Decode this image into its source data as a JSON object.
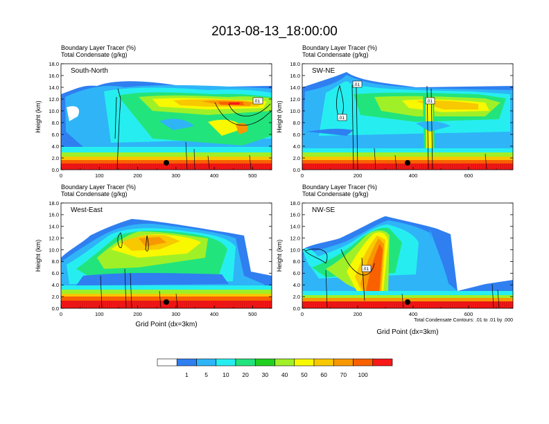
{
  "figure_title": "2013-08-13_18:00:00",
  "shared": {
    "subtitle_line1": "Boundary Layer Tracer   (%)",
    "subtitle_line2": "Total Condensate   (g/kg)",
    "ylabel": "Height (km)",
    "xlabel": "Grid Point (dx=3km)",
    "contour_note": "Total Condensate Contours: .01 to .01 by .000",
    "contour_label": ".01"
  },
  "colorbar": {
    "levels": [
      "1",
      "5",
      "10",
      "20",
      "30",
      "40",
      "50",
      "60",
      "70",
      "100"
    ],
    "colors": [
      "#ffffff",
      "#2f7ff0",
      "#2fb4f8",
      "#26eef0",
      "#22e47c",
      "#20d020",
      "#a0f028",
      "#f8f800",
      "#f8c800",
      "#f89800",
      "#f86000",
      "#f81818"
    ]
  },
  "chart_data": [
    {
      "type": "heatmap",
      "panel_label": "South-North",
      "xlim": [
        0,
        550
      ],
      "xticks": [
        "0",
        "100",
        "200",
        "300",
        "400",
        "500"
      ],
      "ylim": [
        0,
        18
      ],
      "yticks": [
        "0.0",
        "2.0",
        "4.0",
        "6.0",
        "8.0",
        "10.0",
        "12.0",
        "14.0",
        "16.0",
        "18.0"
      ],
      "fields": {
        "bl_tracer_percent": [
          {
            "x": [
              0,
              550
            ],
            "y": [
              0,
              1
            ],
            "value": "100"
          },
          {
            "x": [
              0,
              550
            ],
            "y": [
              1,
              2
            ],
            "value": "60-70"
          },
          {
            "x": [
              0,
              550
            ],
            "y": [
              2,
              3
            ],
            "value": "30-50"
          },
          {
            "x": [
              150,
              420
            ],
            "y": [
              10.5,
              13
            ],
            "value": "40-60"
          },
          {
            "x": [
              380,
              470
            ],
            "y": [
              11,
              12.5
            ],
            "value": "70-100"
          }
        ],
        "total_condensate_contour_gkg": 0.01
      }
    },
    {
      "type": "heatmap",
      "panel_label": "SW-NE",
      "xlim": [
        0,
        760
      ],
      "xticks": [
        "0",
        "200",
        "400",
        "600"
      ],
      "ylim": [
        0,
        18
      ],
      "yticks": [
        "0.0",
        "2.0",
        "4.0",
        "6.0",
        "8.0",
        "10.0",
        "12.0",
        "14.0",
        "16.0",
        "18.0"
      ],
      "fields": {
        "bl_tracer_percent": [
          {
            "x": [
              0,
              760
            ],
            "y": [
              0,
              1
            ],
            "value": "100"
          },
          {
            "x": [
              0,
              760
            ],
            "y": [
              1,
              2.5
            ],
            "value": "50-70"
          },
          {
            "x": [
              200,
              740
            ],
            "y": [
              10,
              13
            ],
            "value": "30-50"
          },
          {
            "x": [
              440,
              500
            ],
            "y": [
              1,
              12
            ],
            "value": "40-60"
          }
        ],
        "total_condensate_contour_gkg": 0.01
      }
    },
    {
      "type": "heatmap",
      "panel_label": "West-East",
      "xlim": [
        0,
        550
      ],
      "xticks": [
        "0",
        "100",
        "200",
        "300",
        "400",
        "500"
      ],
      "ylim": [
        0,
        18
      ],
      "yticks": [
        "0.0",
        "2.0",
        "4.0",
        "6.0",
        "8.0",
        "10.0",
        "12.0",
        "14.0",
        "16.0",
        "18.0"
      ],
      "fields": {
        "bl_tracer_percent": [
          {
            "x": [
              0,
              550
            ],
            "y": [
              0,
              1.5
            ],
            "value": "100"
          },
          {
            "x": [
              0,
              550
            ],
            "y": [
              1.5,
              2.5
            ],
            "value": "60-70"
          },
          {
            "x": [
              100,
              420
            ],
            "y": [
              8,
              12.5
            ],
            "value": "30-50"
          }
        ],
        "total_condensate_contour_gkg": 0.01
      }
    },
    {
      "type": "heatmap",
      "panel_label": "NW-SE",
      "xlim": [
        0,
        760
      ],
      "xticks": [
        "0",
        "200",
        "400",
        "600"
      ],
      "ylim": [
        0,
        18
      ],
      "yticks": [
        "0.0",
        "2.0",
        "4.0",
        "6.0",
        "8.0",
        "10.0",
        "12.0",
        "14.0",
        "16.0",
        "18.0"
      ],
      "fields": {
        "bl_tracer_percent": [
          {
            "x": [
              0,
              760
            ],
            "y": [
              0,
              1
            ],
            "value": "100"
          },
          {
            "x": [
              0,
              760
            ],
            "y": [
              1,
              2.5
            ],
            "value": "50-70"
          },
          {
            "x": [
              180,
              300
            ],
            "y": [
              2,
              12
            ],
            "value": "70-100"
          },
          {
            "x": [
              60,
              420
            ],
            "y": [
              4,
              8
            ],
            "value": "30-50"
          }
        ],
        "total_condensate_contour_gkg": 0.01
      }
    }
  ]
}
